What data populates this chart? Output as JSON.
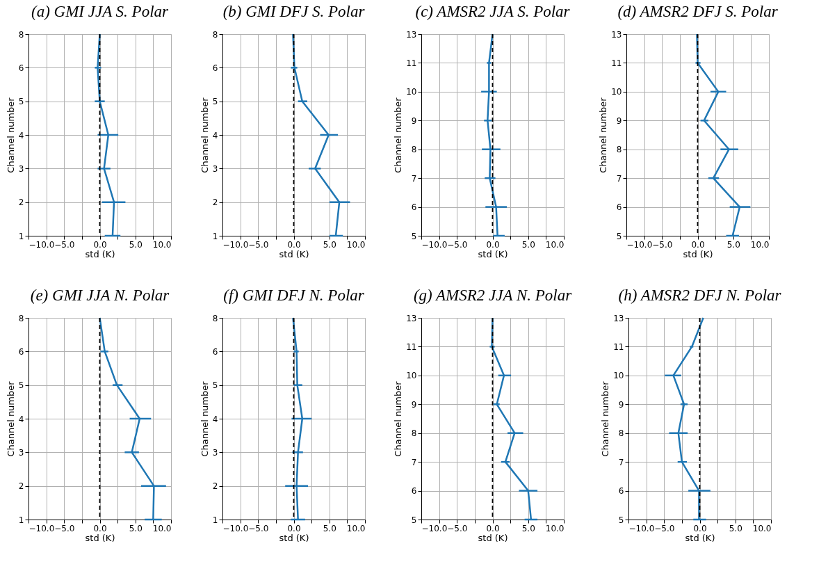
{
  "chart_data": [
    {
      "type": "line",
      "orientation": "horizontal",
      "title": "(a) GMI JJA S. Polar",
      "xlabel": "std (K)",
      "ylabel": "Channel number",
      "categories": [
        "8",
        "6",
        "5",
        "4",
        "3",
        "2",
        "1"
      ],
      "color": "#1f77b4",
      "values": [
        0.0,
        -0.3,
        0.0,
        1.2,
        0.6,
        2.0,
        1.8
      ],
      "errors": [
        null,
        [
          -0.7,
          0.2
        ],
        [
          -0.7,
          0.7
        ],
        [
          -0.3,
          2.6
        ],
        [
          -0.3,
          1.5
        ],
        [
          0.3,
          3.6
        ],
        [
          0.7,
          2.9
        ]
      ],
      "xlim": [
        -10,
        10
      ],
      "xticks": [
        {
          "value": -10,
          "label": "−10.0"
        },
        {
          "value": -7.5,
          "label": null
        },
        {
          "value": -5,
          "label": "−5.0"
        },
        {
          "value": -2.5,
          "label": null
        },
        {
          "value": 0,
          "label": "0.0"
        },
        {
          "value": 2.5,
          "label": null
        },
        {
          "value": 5,
          "label": "5.0"
        },
        {
          "value": 7.5,
          "label": null
        },
        {
          "value": 10,
          "label": "10.0"
        }
      ],
      "ref_lines": [
        {
          "axis": "x",
          "value": 0,
          "color": "#000000",
          "line_style": "dashed"
        }
      ],
      "grid": true
    },
    {
      "type": "line",
      "orientation": "horizontal",
      "title": "(b) GMI DFJ S. Polar",
      "xlabel": "std (K)",
      "ylabel": "Channel number",
      "categories": [
        "8",
        "6",
        "5",
        "4",
        "3",
        "2",
        "1"
      ],
      "color": "#1f77b4",
      "values": [
        -0.1,
        0.1,
        1.2,
        4.9,
        3.0,
        6.4,
        5.9
      ],
      "errors": [
        null,
        [
          -0.4,
          0.5
        ],
        [
          0.6,
          1.9
        ],
        [
          3.7,
          6.2
        ],
        [
          2.1,
          3.8
        ],
        [
          5.0,
          7.9
        ],
        [
          5.0,
          6.9
        ]
      ],
      "xlim": [
        -10,
        10
      ],
      "xticks": [
        {
          "value": -10,
          "label": "−10.0"
        },
        {
          "value": -7.5,
          "label": null
        },
        {
          "value": -5,
          "label": "−5.0"
        },
        {
          "value": -2.5,
          "label": null
        },
        {
          "value": 0,
          "label": "0.0"
        },
        {
          "value": 2.5,
          "label": null
        },
        {
          "value": 5,
          "label": "5.0"
        },
        {
          "value": 7.5,
          "label": null
        },
        {
          "value": 10,
          "label": "10.0"
        }
      ],
      "ref_lines": [
        {
          "axis": "x",
          "value": 0,
          "color": "#000000",
          "line_style": "dashed"
        }
      ],
      "grid": true
    },
    {
      "type": "line",
      "orientation": "horizontal",
      "title": "(c) AMSR2 JJA S. Polar",
      "xlabel": "std (K)",
      "ylabel": "Channel number",
      "categories": [
        "13",
        "11",
        "10",
        "9",
        "8",
        "7",
        "6",
        "5"
      ],
      "color": "#1f77b4",
      "values": [
        0.0,
        -0.5,
        -0.5,
        -0.7,
        -0.3,
        -0.4,
        0.5,
        0.7
      ],
      "errors": [
        null,
        [
          -0.8,
          -0.2
        ],
        [
          -1.6,
          0.6
        ],
        [
          -1.2,
          -0.1
        ],
        [
          -1.5,
          1.1
        ],
        [
          -1.1,
          0.4
        ],
        [
          -1.0,
          2.0
        ],
        [
          0.1,
          1.7
        ]
      ],
      "xlim": [
        -10,
        10
      ],
      "xticks": [
        {
          "value": -10,
          "label": "−10.0"
        },
        {
          "value": -7.5,
          "label": null
        },
        {
          "value": -5,
          "label": "−5.0"
        },
        {
          "value": -2.5,
          "label": null
        },
        {
          "value": 0,
          "label": "0.0"
        },
        {
          "value": 2.5,
          "label": null
        },
        {
          "value": 5,
          "label": "5.0"
        },
        {
          "value": 7.5,
          "label": null
        },
        {
          "value": 10,
          "label": "10.0"
        }
      ],
      "ref_lines": [
        {
          "axis": "x",
          "value": 0,
          "color": "#000000",
          "line_style": "dashed"
        }
      ],
      "grid": true
    },
    {
      "type": "line",
      "orientation": "horizontal",
      "title": "(d) AMSR2 DFJ S. Polar",
      "xlabel": "std (K)",
      "ylabel": "Channel number",
      "categories": [
        "13",
        "11",
        "10",
        "9",
        "8",
        "7",
        "6",
        "5"
      ],
      "color": "#1f77b4",
      "values": [
        -0.1,
        0.0,
        2.9,
        0.9,
        4.4,
        2.2,
        5.9,
        4.9
      ],
      "errors": [
        null,
        [
          -0.3,
          0.4
        ],
        [
          1.8,
          4.0
        ],
        [
          0.4,
          1.5
        ],
        [
          3.2,
          5.7
        ],
        [
          1.5,
          3.0
        ],
        [
          4.5,
          7.4
        ],
        [
          4.0,
          5.8
        ]
      ],
      "xlim": [
        -10,
        10
      ],
      "xticks": [
        {
          "value": -10,
          "label": "−10.0"
        },
        {
          "value": -7.5,
          "label": null
        },
        {
          "value": -5,
          "label": "−5.0"
        },
        {
          "value": -2.5,
          "label": null
        },
        {
          "value": 0,
          "label": "0.0"
        },
        {
          "value": 2.5,
          "label": null
        },
        {
          "value": 5,
          "label": "5.0"
        },
        {
          "value": 7.5,
          "label": null
        },
        {
          "value": 10,
          "label": "10.0"
        }
      ],
      "ref_lines": [
        {
          "axis": "x",
          "value": 0,
          "color": "#000000",
          "line_style": "dashed"
        }
      ],
      "grid": true
    },
    {
      "type": "line",
      "orientation": "horizontal",
      "title": "(e) GMI JJA N. Polar",
      "xlabel": "std (K)",
      "ylabel": "Channel number",
      "categories": [
        "8",
        "6",
        "5",
        "4",
        "3",
        "2",
        "1"
      ],
      "color": "#1f77b4",
      "values": [
        0.0,
        0.7,
        2.4,
        5.6,
        4.5,
        7.6,
        7.5
      ],
      "errors": [
        null,
        [
          0.1,
          1.2
        ],
        [
          1.8,
          3.2
        ],
        [
          4.2,
          7.2
        ],
        [
          3.5,
          5.5
        ],
        [
          5.8,
          9.3
        ],
        [
          6.3,
          8.7
        ]
      ],
      "xlim": [
        -10,
        10
      ],
      "xticks": [
        {
          "value": -10,
          "label": "−10.0"
        },
        {
          "value": -7.5,
          "label": null
        },
        {
          "value": -5,
          "label": "−5.0"
        },
        {
          "value": -2.5,
          "label": null
        },
        {
          "value": 0,
          "label": "0.0"
        },
        {
          "value": 2.5,
          "label": null
        },
        {
          "value": 5,
          "label": "5.0"
        },
        {
          "value": 7.5,
          "label": null
        },
        {
          "value": 10,
          "label": "10.0"
        }
      ],
      "ref_lines": [
        {
          "axis": "x",
          "value": 0,
          "color": "#000000",
          "line_style": "dashed"
        }
      ],
      "grid": true
    },
    {
      "type": "line",
      "orientation": "horizontal",
      "title": "(f) GMI DFJ N. Polar",
      "xlabel": "std (K)",
      "ylabel": "Channel number",
      "categories": [
        "8",
        "6",
        "5",
        "4",
        "3",
        "2",
        "1"
      ],
      "color": "#1f77b4",
      "values": [
        -0.1,
        0.4,
        0.5,
        1.2,
        0.6,
        0.4,
        0.6
      ],
      "errors": [
        null,
        [
          0.0,
          0.7
        ],
        [
          0.0,
          1.2
        ],
        [
          -0.3,
          2.5
        ],
        [
          -0.2,
          1.3
        ],
        [
          -1.2,
          2.0
        ],
        [
          -0.4,
          1.6
        ]
      ],
      "xlim": [
        -10,
        10
      ],
      "xticks": [
        {
          "value": -10,
          "label": "−10.0"
        },
        {
          "value": -7.5,
          "label": null
        },
        {
          "value": -5,
          "label": "−5.0"
        },
        {
          "value": -2.5,
          "label": null
        },
        {
          "value": 0,
          "label": "0.0"
        },
        {
          "value": 2.5,
          "label": null
        },
        {
          "value": 5,
          "label": "5.0"
        },
        {
          "value": 7.5,
          "label": null
        },
        {
          "value": 10,
          "label": "10.0"
        }
      ],
      "ref_lines": [
        {
          "axis": "x",
          "value": 0,
          "color": "#000000",
          "line_style": "dashed"
        }
      ],
      "grid": true
    },
    {
      "type": "line",
      "orientation": "horizontal",
      "title": "(g) AMSR2 JJA N. Polar",
      "xlabel": "std (K)",
      "ylabel": "Channel number",
      "categories": [
        "13",
        "11",
        "10",
        "9",
        "8",
        "7",
        "6",
        "5"
      ],
      "color": "#1f77b4",
      "values": [
        0.0,
        -0.1,
        1.6,
        0.6,
        3.1,
        1.8,
        5.0,
        5.4
      ],
      "errors": [
        null,
        [
          -0.4,
          0.3
        ],
        [
          0.8,
          2.6
        ],
        [
          0.1,
          1.0
        ],
        [
          2.1,
          4.3
        ],
        [
          1.2,
          2.4
        ],
        [
          3.7,
          6.3
        ],
        [
          4.5,
          6.3
        ]
      ],
      "xlim": [
        -10,
        10
      ],
      "xticks": [
        {
          "value": -10,
          "label": "−10.0"
        },
        {
          "value": -7.5,
          "label": null
        },
        {
          "value": -5,
          "label": "−5.0"
        },
        {
          "value": -2.5,
          "label": null
        },
        {
          "value": 0,
          "label": "0.0"
        },
        {
          "value": 2.5,
          "label": null
        },
        {
          "value": 5,
          "label": "5.0"
        },
        {
          "value": 7.5,
          "label": null
        },
        {
          "value": 10,
          "label": "10.0"
        }
      ],
      "ref_lines": [
        {
          "axis": "x",
          "value": 0,
          "color": "#000000",
          "line_style": "dashed"
        }
      ],
      "grid": true
    },
    {
      "type": "line",
      "orientation": "horizontal",
      "title": "(h) AMSR2 DFJ N. Polar",
      "xlabel": "std (K)",
      "ylabel": "Channel number",
      "categories": [
        "13",
        "11",
        "10",
        "9",
        "8",
        "7",
        "6",
        "5"
      ],
      "color": "#1f77b4",
      "values": [
        0.5,
        -1.1,
        -3.7,
        -2.2,
        -3.0,
        -2.5,
        -0.1,
        -0.1
      ],
      "errors": [
        null,
        [
          -1.4,
          -0.9
        ],
        [
          -4.9,
          -2.6
        ],
        [
          -2.7,
          -1.7
        ],
        [
          -4.3,
          -1.7
        ],
        [
          -3.1,
          -1.8
        ],
        [
          -1.6,
          1.5
        ],
        [
          -0.9,
          0.9
        ]
      ],
      "xlim": [
        -10,
        10
      ],
      "xticks": [
        {
          "value": -10,
          "label": "−10.0"
        },
        {
          "value": -7.5,
          "label": null
        },
        {
          "value": -5,
          "label": "−5.0"
        },
        {
          "value": -2.5,
          "label": null
        },
        {
          "value": 0,
          "label": "0.0"
        },
        {
          "value": 2.5,
          "label": null
        },
        {
          "value": 5,
          "label": "5.0"
        },
        {
          "value": 7.5,
          "label": null
        },
        {
          "value": 10,
          "label": "10.0"
        }
      ],
      "ref_lines": [
        {
          "axis": "x",
          "value": 0,
          "color": "#000000",
          "line_style": "dashed"
        }
      ],
      "grid": true
    }
  ]
}
